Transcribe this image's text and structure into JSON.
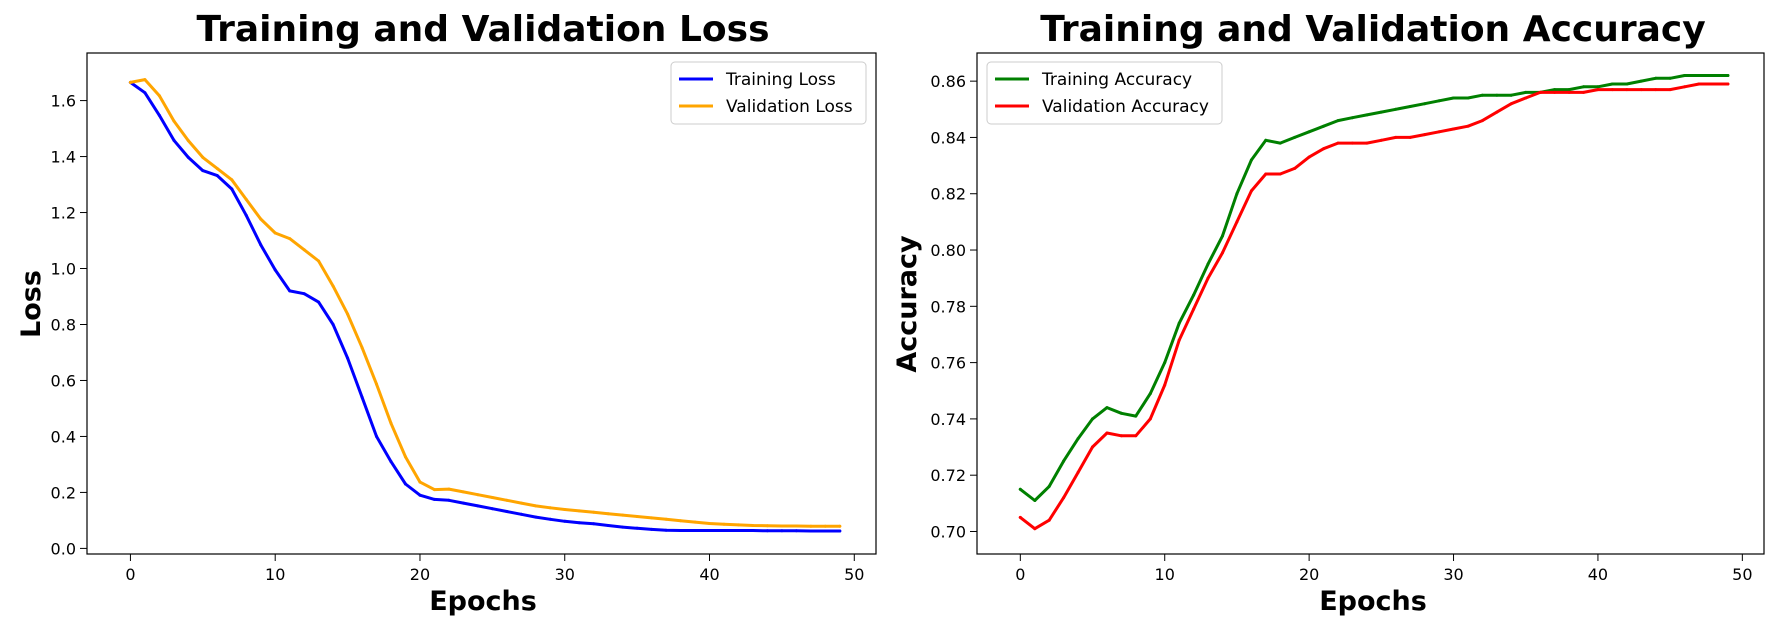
{
  "chart_data": [
    {
      "type": "line",
      "title": "Training and Validation Loss",
      "xlabel": "Epochs",
      "ylabel": "Loss",
      "xlim": [
        -3.0,
        51.5
      ],
      "ylim": [
        -0.02,
        1.77
      ],
      "xticks": [
        0,
        10,
        20,
        30,
        40,
        50
      ],
      "yticks": [
        0.0,
        0.2,
        0.4,
        0.6,
        0.8,
        1.0,
        1.2,
        1.4,
        1.6
      ],
      "tick_decimals": 1,
      "legend": "top-right",
      "grid": false,
      "x": [
        0,
        1,
        2,
        3,
        4,
        5,
        6,
        7,
        8,
        9,
        10,
        11,
        12,
        13,
        14,
        15,
        16,
        17,
        18,
        19,
        20,
        21,
        22,
        23,
        24,
        25,
        26,
        27,
        28,
        29,
        30,
        31,
        32,
        33,
        34,
        35,
        36,
        37,
        38,
        39,
        40,
        41,
        42,
        43,
        44,
        45,
        46,
        47,
        48,
        49
      ],
      "series": [
        {
          "name": "Training Loss",
          "color": "#0000ff",
          "values": [
            1.665,
            1.628,
            1.547,
            1.458,
            1.397,
            1.35,
            1.332,
            1.284,
            1.19,
            1.085,
            0.995,
            0.92,
            0.91,
            0.88,
            0.8,
            0.68,
            0.54,
            0.4,
            0.31,
            0.23,
            0.19,
            0.175,
            0.172,
            0.162,
            0.152,
            0.142,
            0.132,
            0.122,
            0.112,
            0.104,
            0.097,
            0.092,
            0.088,
            0.082,
            0.076,
            0.072,
            0.068,
            0.065,
            0.064,
            0.064,
            0.064,
            0.064,
            0.064,
            0.064,
            0.063,
            0.063,
            0.063,
            0.062,
            0.062,
            0.062
          ]
        },
        {
          "name": "Validation Loss",
          "color": "#ffa500",
          "values": [
            1.665,
            1.675,
            1.617,
            1.527,
            1.457,
            1.397,
            1.357,
            1.317,
            1.247,
            1.177,
            1.127,
            1.107,
            1.067,
            1.027,
            0.937,
            0.837,
            0.717,
            0.587,
            0.447,
            0.327,
            0.237,
            0.21,
            0.212,
            0.202,
            0.192,
            0.182,
            0.172,
            0.162,
            0.152,
            0.145,
            0.139,
            0.134,
            0.129,
            0.124,
            0.119,
            0.114,
            0.109,
            0.104,
            0.099,
            0.094,
            0.089,
            0.086,
            0.084,
            0.082,
            0.081,
            0.08,
            0.08,
            0.079,
            0.079,
            0.079
          ]
        }
      ]
    },
    {
      "type": "line",
      "title": "Training and Validation Accuracy",
      "xlabel": "Epochs",
      "ylabel": "Accuracy",
      "xlim": [
        -3.0,
        51.5
      ],
      "ylim": [
        0.692,
        0.87
      ],
      "xticks": [
        0,
        10,
        20,
        30,
        40,
        50
      ],
      "yticks": [
        0.7,
        0.72,
        0.74,
        0.76,
        0.78,
        0.8,
        0.82,
        0.84,
        0.86
      ],
      "tick_decimals": 2,
      "legend": "top-left",
      "grid": false,
      "x": [
        0,
        1,
        2,
        3,
        4,
        5,
        6,
        7,
        8,
        9,
        10,
        11,
        12,
        13,
        14,
        15,
        16,
        17,
        18,
        19,
        20,
        21,
        22,
        23,
        24,
        25,
        26,
        27,
        28,
        29,
        30,
        31,
        32,
        33,
        34,
        35,
        36,
        37,
        38,
        39,
        40,
        41,
        42,
        43,
        44,
        45,
        46,
        47,
        48,
        49
      ],
      "series": [
        {
          "name": "Training Accuracy",
          "color": "#008000",
          "values": [
            0.715,
            0.711,
            0.716,
            0.725,
            0.733,
            0.74,
            0.744,
            0.742,
            0.741,
            0.749,
            0.76,
            0.774,
            0.784,
            0.795,
            0.805,
            0.82,
            0.832,
            0.839,
            0.838,
            0.84,
            0.842,
            0.844,
            0.846,
            0.847,
            0.848,
            0.849,
            0.85,
            0.851,
            0.852,
            0.853,
            0.854,
            0.854,
            0.855,
            0.855,
            0.855,
            0.856,
            0.856,
            0.857,
            0.857,
            0.858,
            0.858,
            0.859,
            0.859,
            0.86,
            0.861,
            0.861,
            0.862,
            0.862,
            0.862,
            0.862
          ]
        },
        {
          "name": "Validation Accuracy",
          "color": "#ff0000",
          "values": [
            0.705,
            0.701,
            0.704,
            0.712,
            0.721,
            0.73,
            0.735,
            0.734,
            0.734,
            0.74,
            0.752,
            0.768,
            0.779,
            0.79,
            0.799,
            0.81,
            0.821,
            0.827,
            0.827,
            0.829,
            0.833,
            0.836,
            0.838,
            0.838,
            0.838,
            0.839,
            0.84,
            0.84,
            0.841,
            0.842,
            0.843,
            0.844,
            0.846,
            0.849,
            0.852,
            0.854,
            0.856,
            0.856,
            0.856,
            0.856,
            0.857,
            0.857,
            0.857,
            0.857,
            0.857,
            0.857,
            0.858,
            0.859,
            0.859,
            0.859
          ]
        }
      ]
    }
  ]
}
